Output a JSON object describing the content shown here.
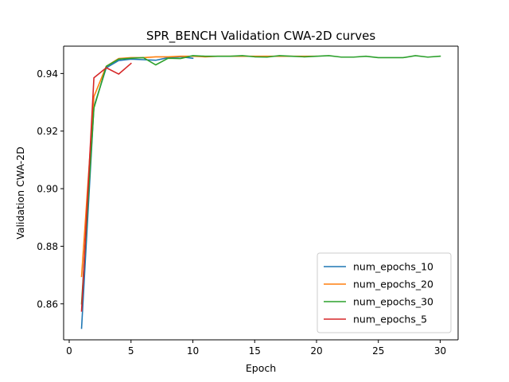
{
  "chart_data": {
    "type": "line",
    "title": "SPR_BENCH Validation CWA-2D curves",
    "xlabel": "Epoch",
    "ylabel": "Validation CWA-2D",
    "xlim": [
      -0.45,
      31.45
    ],
    "ylim": [
      0.8475,
      0.9495
    ],
    "xticks": [
      0,
      5,
      10,
      15,
      20,
      25,
      30
    ],
    "xtick_labels": [
      "0",
      "5",
      "10",
      "15",
      "20",
      "25",
      "30"
    ],
    "yticks": [
      0.86,
      0.88,
      0.9,
      0.92,
      0.94
    ],
    "ytick_labels": [
      "0.86",
      "0.88",
      "0.90",
      "0.92",
      "0.94"
    ],
    "grid": false,
    "legend_position": "bottom-right",
    "series": [
      {
        "name": "num_epochs_10",
        "color": "#1f77b4",
        "x": [
          1,
          2,
          3,
          4,
          5,
          6,
          7,
          8,
          9,
          10
        ],
        "y": [
          0.8515,
          0.9285,
          0.942,
          0.9445,
          0.945,
          0.9448,
          0.9446,
          0.9455,
          0.9458,
          0.9453
        ]
      },
      {
        "name": "num_epochs_20",
        "color": "#ff7f0e",
        "x": [
          1,
          2,
          3,
          4,
          5,
          6,
          7,
          8,
          9,
          10,
          11,
          12,
          13,
          14,
          15,
          16,
          17,
          18,
          19,
          20
        ],
        "y": [
          0.8695,
          0.932,
          0.9425,
          0.9452,
          0.9455,
          0.9455,
          0.9458,
          0.9458,
          0.946,
          0.946,
          0.9458,
          0.946,
          0.946,
          0.946,
          0.946,
          0.946,
          0.946,
          0.946,
          0.946,
          0.946
        ]
      },
      {
        "name": "num_epochs_30",
        "color": "#2ca02c",
        "x": [
          1,
          2,
          3,
          4,
          5,
          6,
          7,
          8,
          9,
          10,
          11,
          12,
          13,
          14,
          15,
          16,
          17,
          18,
          19,
          20,
          21,
          22,
          23,
          24,
          25,
          26,
          27,
          28,
          29,
          30
        ],
        "y": [
          0.86,
          0.928,
          0.9425,
          0.945,
          0.9453,
          0.9455,
          0.943,
          0.9453,
          0.9452,
          0.9462,
          0.946,
          0.946,
          0.946,
          0.9462,
          0.9458,
          0.9457,
          0.9462,
          0.946,
          0.9458,
          0.946,
          0.9462,
          0.9457,
          0.9457,
          0.946,
          0.9455,
          0.9455,
          0.9455,
          0.9462,
          0.9457,
          0.946
        ]
      },
      {
        "name": "num_epochs_5",
        "color": "#d62728",
        "x": [
          1,
          2,
          3,
          4,
          5
        ],
        "y": [
          0.8575,
          0.9385,
          0.942,
          0.9398,
          0.9435
        ]
      }
    ]
  }
}
